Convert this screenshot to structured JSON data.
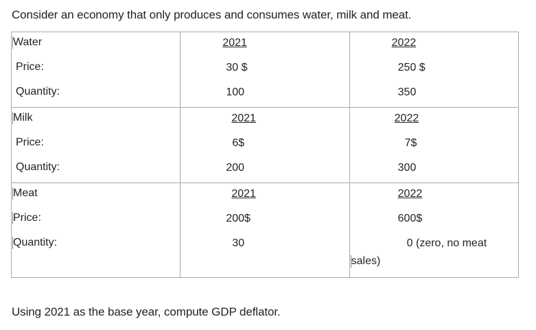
{
  "intro": "Consider an economy that only produces and consumes water, milk and meat.",
  "question": "Using 2021 as the base year, compute GDP deflator.",
  "sections": [
    {
      "name": "Water",
      "year_a": "2021",
      "year_b": "2022",
      "price_label": "Price:",
      "quantity_label": "Quantity:",
      "price_a": "30 $",
      "price_b": "250 $",
      "quantity_a": "100",
      "quantity_b": "350"
    },
    {
      "name": "Milk",
      "year_a": "2021",
      "year_b": "2022",
      "price_label": "Price:",
      "quantity_label": "Quantity:",
      "price_a": "6$",
      "price_b": "7$",
      "quantity_a": "200",
      "quantity_b": "300"
    },
    {
      "name": "Meat",
      "year_a": "2021",
      "year_b": "2022",
      "price_label": "Price:",
      "quantity_label": "Quantity:",
      "price_a": "200$",
      "price_b": "600$",
      "quantity_a": "30",
      "quantity_b_line1": "0 (zero, no meat",
      "quantity_b_line2": "sales)"
    }
  ]
}
